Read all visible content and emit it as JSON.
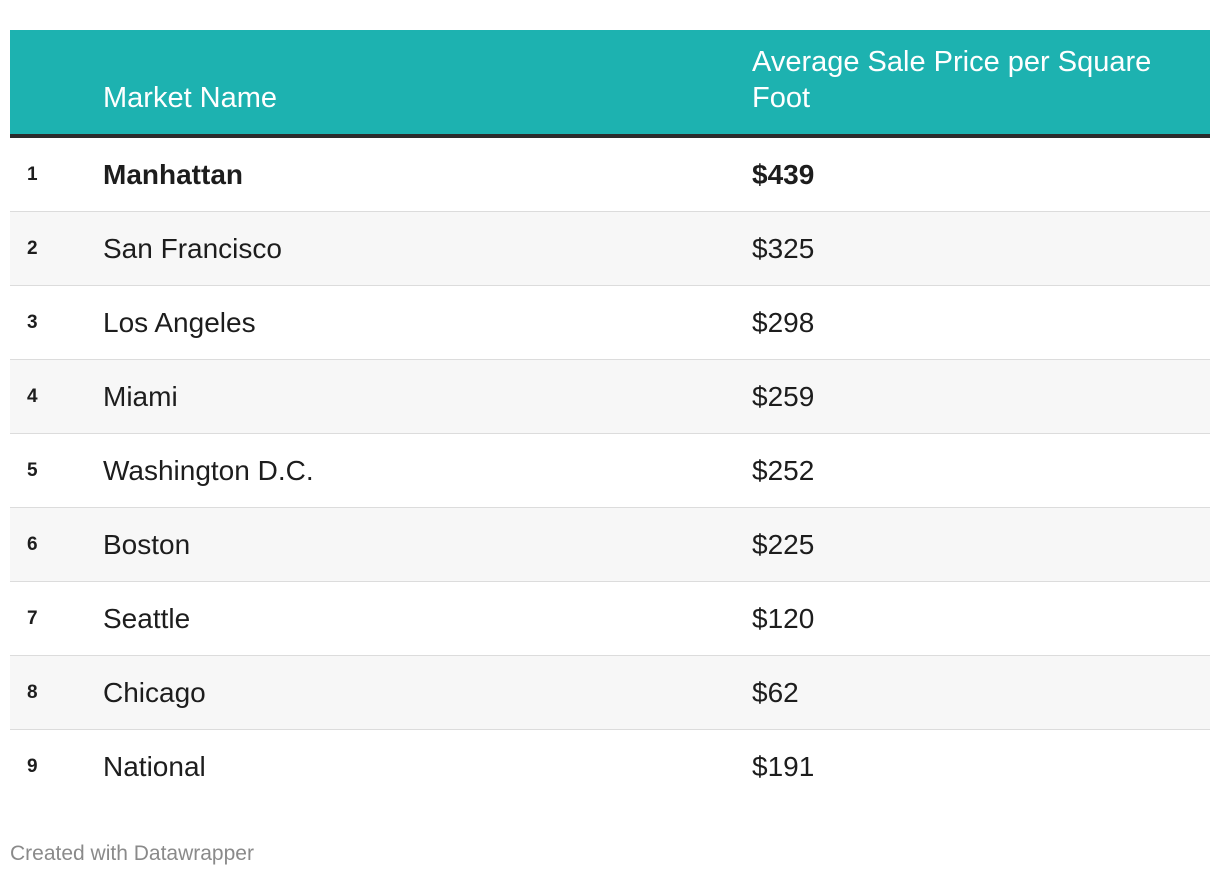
{
  "chart_data": {
    "type": "table",
    "columns": [
      "",
      "Market Name",
      "Average Sale Price per Square Foot"
    ],
    "rows": [
      {
        "rank": "1",
        "market": "Manhattan",
        "price": "$439",
        "value": 439
      },
      {
        "rank": "2",
        "market": "San Francisco",
        "price": "$325",
        "value": 325
      },
      {
        "rank": "3",
        "market": "Los Angeles",
        "price": "$298",
        "value": 298
      },
      {
        "rank": "4",
        "market": "Miami",
        "price": "$259",
        "value": 259
      },
      {
        "rank": "5",
        "market": "Washington D.C.",
        "price": "$252",
        "value": 252
      },
      {
        "rank": "6",
        "market": "Boston",
        "price": "$225",
        "value": 225
      },
      {
        "rank": "7",
        "market": "Seattle",
        "price": "$120",
        "value": 120
      },
      {
        "rank": "8",
        "market": "Chicago",
        "price": "$62",
        "value": 62
      },
      {
        "rank": "9",
        "market": "National",
        "price": "$191",
        "value": 191
      }
    ],
    "highlighted_row": "Manhattan"
  },
  "footer": {
    "credit": "Created with Datawrapper"
  },
  "colors": {
    "header_background": "#1db2b0",
    "header_text": "#ffffff",
    "header_rule": "#2b2b2b",
    "row_alt_background": "#f7f7f7",
    "footer_text": "#8a8a8a"
  }
}
